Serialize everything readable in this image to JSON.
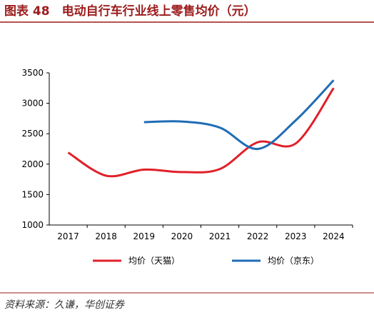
{
  "chart_data": {
    "type": "line",
    "title": "图表 48　电动自行车行业线上零售均价（元）",
    "source": "资料来源：久谦，华创证券",
    "categories": [
      "2017",
      "2018",
      "2019",
      "2020",
      "2021",
      "2022",
      "2023",
      "2024"
    ],
    "series": [
      {
        "name": "均价（天猫）",
        "color": "#e0202a",
        "values": [
          2190,
          1810,
          1910,
          1870,
          1920,
          2360,
          2340,
          3250
        ]
      },
      {
        "name": "均价（京东）",
        "color": "#1f6cb5",
        "values": [
          null,
          null,
          2690,
          2700,
          2600,
          2250,
          2720,
          3380
        ]
      }
    ],
    "ylim": [
      1000,
      3500
    ],
    "yticks": [
      1000,
      1500,
      2000,
      2500,
      3000,
      3500
    ]
  }
}
